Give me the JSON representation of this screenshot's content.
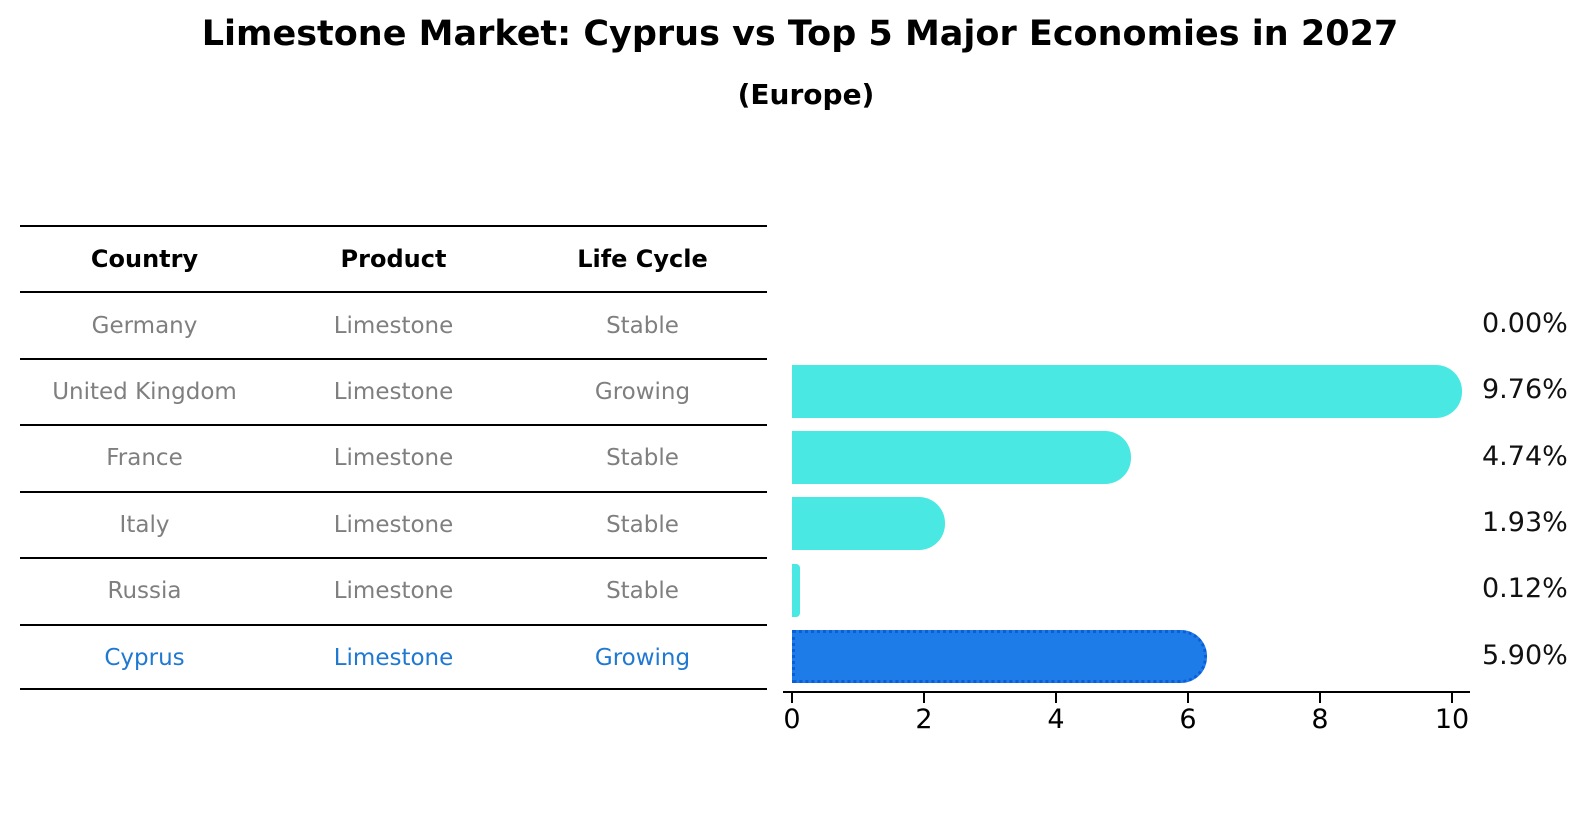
{
  "title": "Limestone Market: Cyprus vs Top 5 Major Economies in 2027",
  "subtitle": "(Europe)",
  "table": {
    "headers": [
      "Country",
      "Product",
      "Life Cycle"
    ],
    "rows": [
      {
        "country": "Germany",
        "product": "Limestone",
        "life_cycle": "Stable",
        "highlight": false
      },
      {
        "country": "United Kingdom",
        "product": "Limestone",
        "life_cycle": "Growing",
        "highlight": false
      },
      {
        "country": "France",
        "product": "Limestone",
        "life_cycle": "Stable",
        "highlight": false
      },
      {
        "country": "Italy",
        "product": "Limestone",
        "life_cycle": "Stable",
        "highlight": false
      },
      {
        "country": "Russia",
        "product": "Limestone",
        "life_cycle": "Stable",
        "highlight": false
      },
      {
        "country": "Cyprus",
        "product": "Limestone",
        "life_cycle": "Growing",
        "highlight": true
      }
    ]
  },
  "chart_data": {
    "type": "bar",
    "orientation": "horizontal",
    "title": "Limestone Market: Cyprus vs Top 5 Major Economies in 2027",
    "subtitle": "(Europe)",
    "categories": [
      "Germany",
      "United Kingdom",
      "France",
      "Italy",
      "Russia",
      "Cyprus"
    ],
    "values": [
      0.0,
      9.76,
      4.74,
      1.93,
      0.12,
      5.9
    ],
    "value_labels": [
      "0.00%",
      "9.76%",
      "4.74%",
      "1.93%",
      "0.12%",
      "5.90%"
    ],
    "xlim": [
      0,
      10
    ],
    "xticks": [
      0,
      2,
      4,
      6,
      8,
      10
    ],
    "xtick_labels": [
      "0",
      "2",
      "4",
      "6",
      "8",
      "10"
    ],
    "grid": false,
    "legend": "none",
    "highlight_index": 5,
    "colors": {
      "bar": "#49E8E2",
      "highlight_bar": "#1E7CE8",
      "highlight_border": "#0B5ED7",
      "muted_text": "#7F7F7F",
      "highlight_text": "#1F78D1",
      "axis": "#000000",
      "value_label_text": "#111111"
    }
  }
}
